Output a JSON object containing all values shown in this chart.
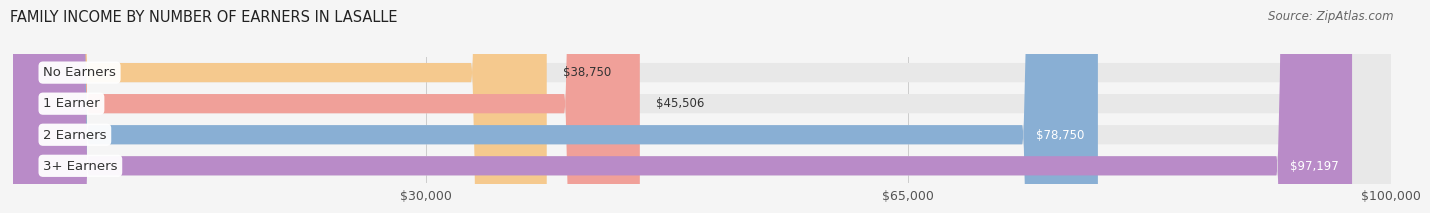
{
  "title": "FAMILY INCOME BY NUMBER OF EARNERS IN LASALLE",
  "source": "Source: ZipAtlas.com",
  "categories": [
    "No Earners",
    "1 Earner",
    "2 Earners",
    "3+ Earners"
  ],
  "values": [
    38750,
    45506,
    78750,
    97197
  ],
  "bar_colors": [
    "#f5c98e",
    "#f0a099",
    "#89afd4",
    "#b98bc8"
  ],
  "label_colors": [
    "#333333",
    "#333333",
    "#333333",
    "#333333"
  ],
  "value_colors": [
    "#333333",
    "#333333",
    "#ffffff",
    "#ffffff"
  ],
  "bar_bg_color": "#e8e8e8",
  "background_color": "#f5f5f5",
  "xmin": 0,
  "xmax": 100000,
  "xticks": [
    30000,
    65000,
    100000
  ],
  "xtick_labels": [
    "$30,000",
    "$65,000",
    "$100,000"
  ],
  "title_fontsize": 10.5,
  "source_fontsize": 8.5,
  "label_fontsize": 9.5,
  "value_fontsize": 8.5,
  "tick_fontsize": 9
}
